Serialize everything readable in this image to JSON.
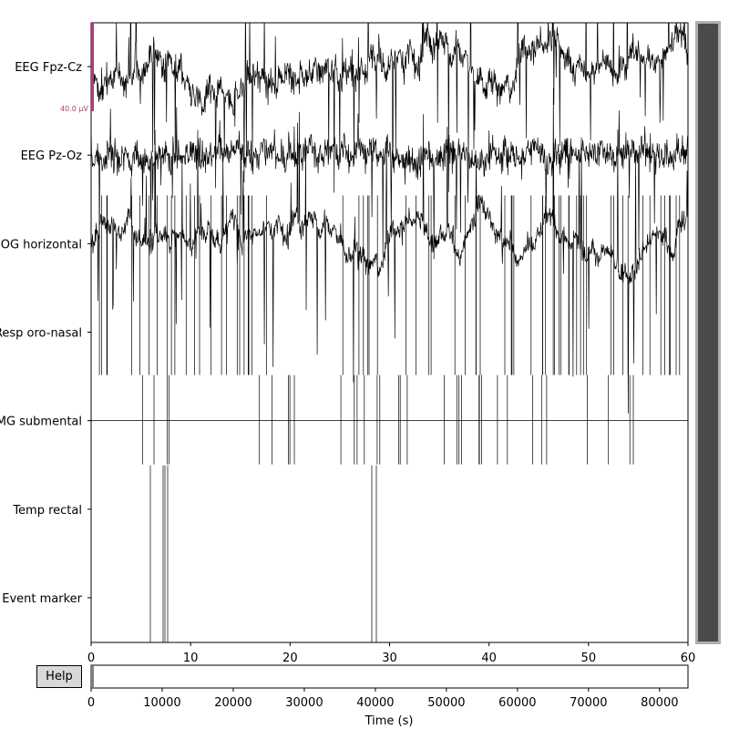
{
  "chart_data": {
    "type": "line",
    "channels": [
      "EEG Fpz-Cz",
      "EEG Pz-Oz",
      "EOG horizontal",
      "Resp oro-nasal",
      "EMG submental",
      "Temp rectal",
      "Event marker"
    ],
    "xlim": [
      0,
      60
    ],
    "x_ticks": [
      "0",
      "10",
      "20",
      "30",
      "40",
      "50",
      "60"
    ],
    "scale_bar": "40.0 µV",
    "overview": {
      "xlabel": "Time (s)",
      "xlim": [
        0,
        84000
      ],
      "x_ticks": [
        "0",
        "10000",
        "20000",
        "30000",
        "40000",
        "50000",
        "60000",
        "70000",
        "80000"
      ]
    }
  },
  "ui": {
    "help_label": "Help"
  },
  "colors": {
    "trace": "#000000",
    "scale_bar": "#b03a7a",
    "scroll_thumb": "#4a4a4a"
  }
}
